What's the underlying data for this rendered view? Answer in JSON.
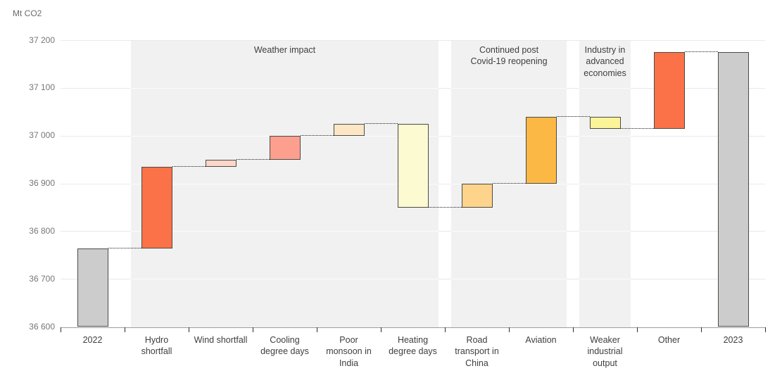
{
  "chart_data": {
    "type": "bar",
    "variant": "waterfall",
    "unit_label": "Mt CO2",
    "ylim": [
      36600,
      37200
    ],
    "grid": true,
    "y_ticks": [
      37200,
      37100,
      37000,
      36900,
      36800,
      36700,
      36600
    ],
    "y_tick_labels": [
      "37 200",
      "37 100",
      "37 000",
      "36 900",
      "36 800",
      "36 700",
      "36 600"
    ],
    "categories": [
      "2022",
      "Hydro shortfall",
      "Wind shortfall",
      "Cooling degree days",
      "Poor monsoon in India",
      "Heating degree days",
      "Road transport in China",
      "Aviation",
      "Weaker industrial output",
      "Other",
      "2023"
    ],
    "x_tick_label_lines": [
      [
        "2022"
      ],
      [
        "Hydro",
        "shortfall"
      ],
      [
        "Wind shortfall"
      ],
      [
        "Cooling",
        "degree days"
      ],
      [
        "Poor",
        "monsoon in",
        "India"
      ],
      [
        "Heating",
        "degree days"
      ],
      [
        "Road",
        "transport in",
        "China"
      ],
      [
        "Aviation"
      ],
      [
        "Weaker",
        "industrial",
        "output"
      ],
      [
        "Other"
      ],
      [
        "2023"
      ]
    ],
    "bars": [
      {
        "category": "2022",
        "kind": "total",
        "from": 36600,
        "to": 36765,
        "value": 36765,
        "color": "#cccccc"
      },
      {
        "category": "Hydro shortfall",
        "kind": "increase",
        "from": 36765,
        "to": 36935,
        "value": 170,
        "color": "#fb7248"
      },
      {
        "category": "Wind shortfall",
        "kind": "increase",
        "from": 36935,
        "to": 36950,
        "value": 15,
        "color": "#fbd6c9"
      },
      {
        "category": "Cooling degree days",
        "kind": "increase",
        "from": 36950,
        "to": 37000,
        "value": 50,
        "color": "#fd9f8f"
      },
      {
        "category": "Poor monsoon in India",
        "kind": "increase",
        "from": 37000,
        "to": 37025,
        "value": 25,
        "color": "#fde6c5"
      },
      {
        "category": "Heating degree days",
        "kind": "decrease",
        "from": 37025,
        "to": 36850,
        "value": -175,
        "color": "#fcfad0"
      },
      {
        "category": "Road transport in China",
        "kind": "increase",
        "from": 36850,
        "to": 36900,
        "value": 50,
        "color": "#fed38c"
      },
      {
        "category": "Aviation",
        "kind": "increase",
        "from": 36900,
        "to": 37040,
        "value": 140,
        "color": "#fcb845"
      },
      {
        "category": "Weaker industrial output",
        "kind": "decrease",
        "from": 37040,
        "to": 37015,
        "value": -25,
        "color": "#fcf498"
      },
      {
        "category": "Other",
        "kind": "increase",
        "from": 37015,
        "to": 37175,
        "value": 160,
        "color": "#fb7248"
      },
      {
        "category": "2023",
        "kind": "total",
        "from": 36600,
        "to": 37175,
        "value": 37175,
        "color": "#cccccc"
      }
    ],
    "connector_levels": [
      36765,
      36935,
      36950,
      37000,
      37025,
      36850,
      36900,
      37040,
      37015,
      37175
    ],
    "regions": [
      {
        "label": "Weather impact",
        "label_lines": [
          "Weather impact"
        ],
        "from_index": 1,
        "to_index": 5
      },
      {
        "label": "Continued post Covid-19 reopening",
        "label_lines": [
          "Continued post",
          "Covid-19 reopening"
        ],
        "from_index": 6,
        "to_index": 7
      },
      {
        "label": "Industry in advanced economies",
        "label_lines": [
          "Industry in",
          "advanced",
          "economies"
        ],
        "from_index": 8,
        "to_index": 8
      }
    ],
    "style_colors": {
      "region_fill": "#f1f1f1",
      "gridline": "#e9e9e9",
      "bar_border": "#4b4b44",
      "axis_line": "#9e9e9e",
      "tick_label": "#767676",
      "category_label": "#3e3e3e",
      "connector": "#1f1f1f",
      "total_bar": "#cccccc",
      "strong_increase": "#fb7248"
    }
  }
}
